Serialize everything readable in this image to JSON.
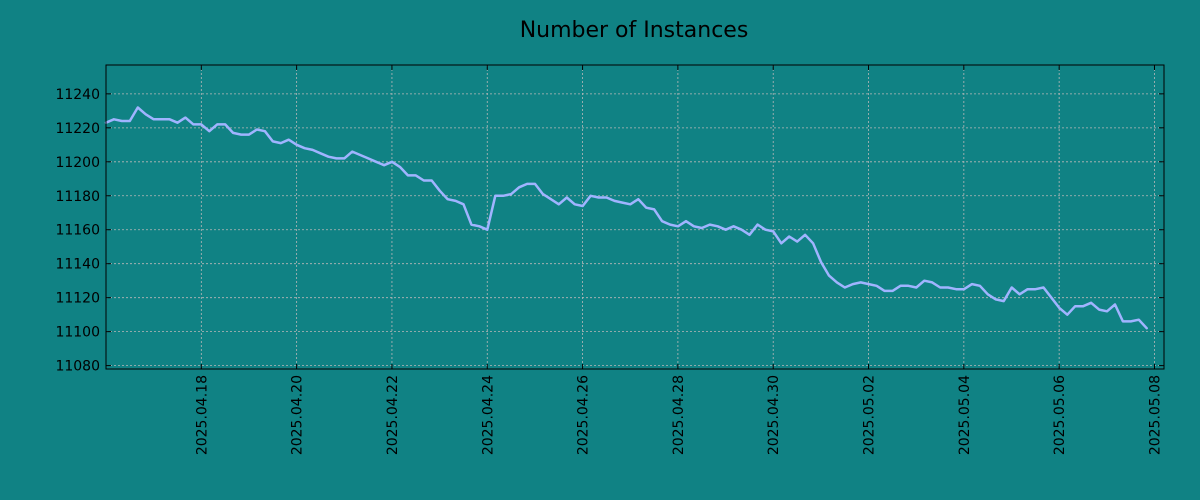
{
  "chart_data": {
    "type": "line",
    "title": "Number of Instances",
    "xlabel": "",
    "ylabel": "",
    "x_start": "2025-04-16",
    "x_ticks": [
      "2025.04.18",
      "2025.04.20",
      "2025.04.22",
      "2025.04.24",
      "2025.04.26",
      "2025.04.28",
      "2025.04.30",
      "2025.05.02",
      "2025.05.04",
      "2025.05.06",
      "2025.05.08"
    ],
    "y_ticks": [
      11080,
      11100,
      11120,
      11140,
      11160,
      11180,
      11200,
      11220,
      11240
    ],
    "ylim": [
      11078,
      11257
    ],
    "grid": true,
    "series": [
      {
        "name": "",
        "color": "#a0b4ff",
        "x_step_days": 0.1667,
        "values": [
          11223,
          11225,
          11224,
          11224,
          11232,
          11228,
          11225,
          11225,
          11225,
          11223,
          11226,
          11222,
          11222,
          11218,
          11222,
          11222,
          11217,
          11216,
          11216,
          11219,
          11218,
          11212,
          11211,
          11213,
          11210,
          11208,
          11207,
          11205,
          11203,
          11202,
          11202,
          11206,
          11204,
          11202,
          11200,
          11198,
          11200,
          11197,
          11192,
          11192,
          11189,
          11189,
          11183,
          11178,
          11177,
          11175,
          11163,
          11162,
          11160,
          11180,
          11180,
          11181,
          11185,
          11187,
          11187,
          11181,
          11178,
          11175,
          11179,
          11175,
          11174,
          11180,
          11179,
          11179,
          11177,
          11176,
          11175,
          11178,
          11173,
          11172,
          11165,
          11163,
          11162,
          11165,
          11162,
          11161,
          11163,
          11162,
          11160,
          11162,
          11160,
          11157,
          11163,
          11160,
          11159,
          11152,
          11156,
          11153,
          11157,
          11152,
          11141,
          11133,
          11129,
          11126,
          11128,
          11129,
          11128,
          11127,
          11124,
          11124,
          11127,
          11127,
          11126,
          11130,
          11129,
          11126,
          11126,
          11125,
          11125,
          11128,
          11127,
          11122,
          11119,
          11118,
          11126,
          11122,
          11125,
          11125,
          11126,
          11120,
          11114,
          11110,
          11115,
          11115,
          11117,
          11113,
          11112,
          11116,
          11106,
          11106,
          11107,
          11102
        ]
      }
    ]
  },
  "colors": {
    "background": "#108284",
    "line": "#a0b4ff",
    "grid": "#b8b8b8",
    "axis": "#000000"
  }
}
